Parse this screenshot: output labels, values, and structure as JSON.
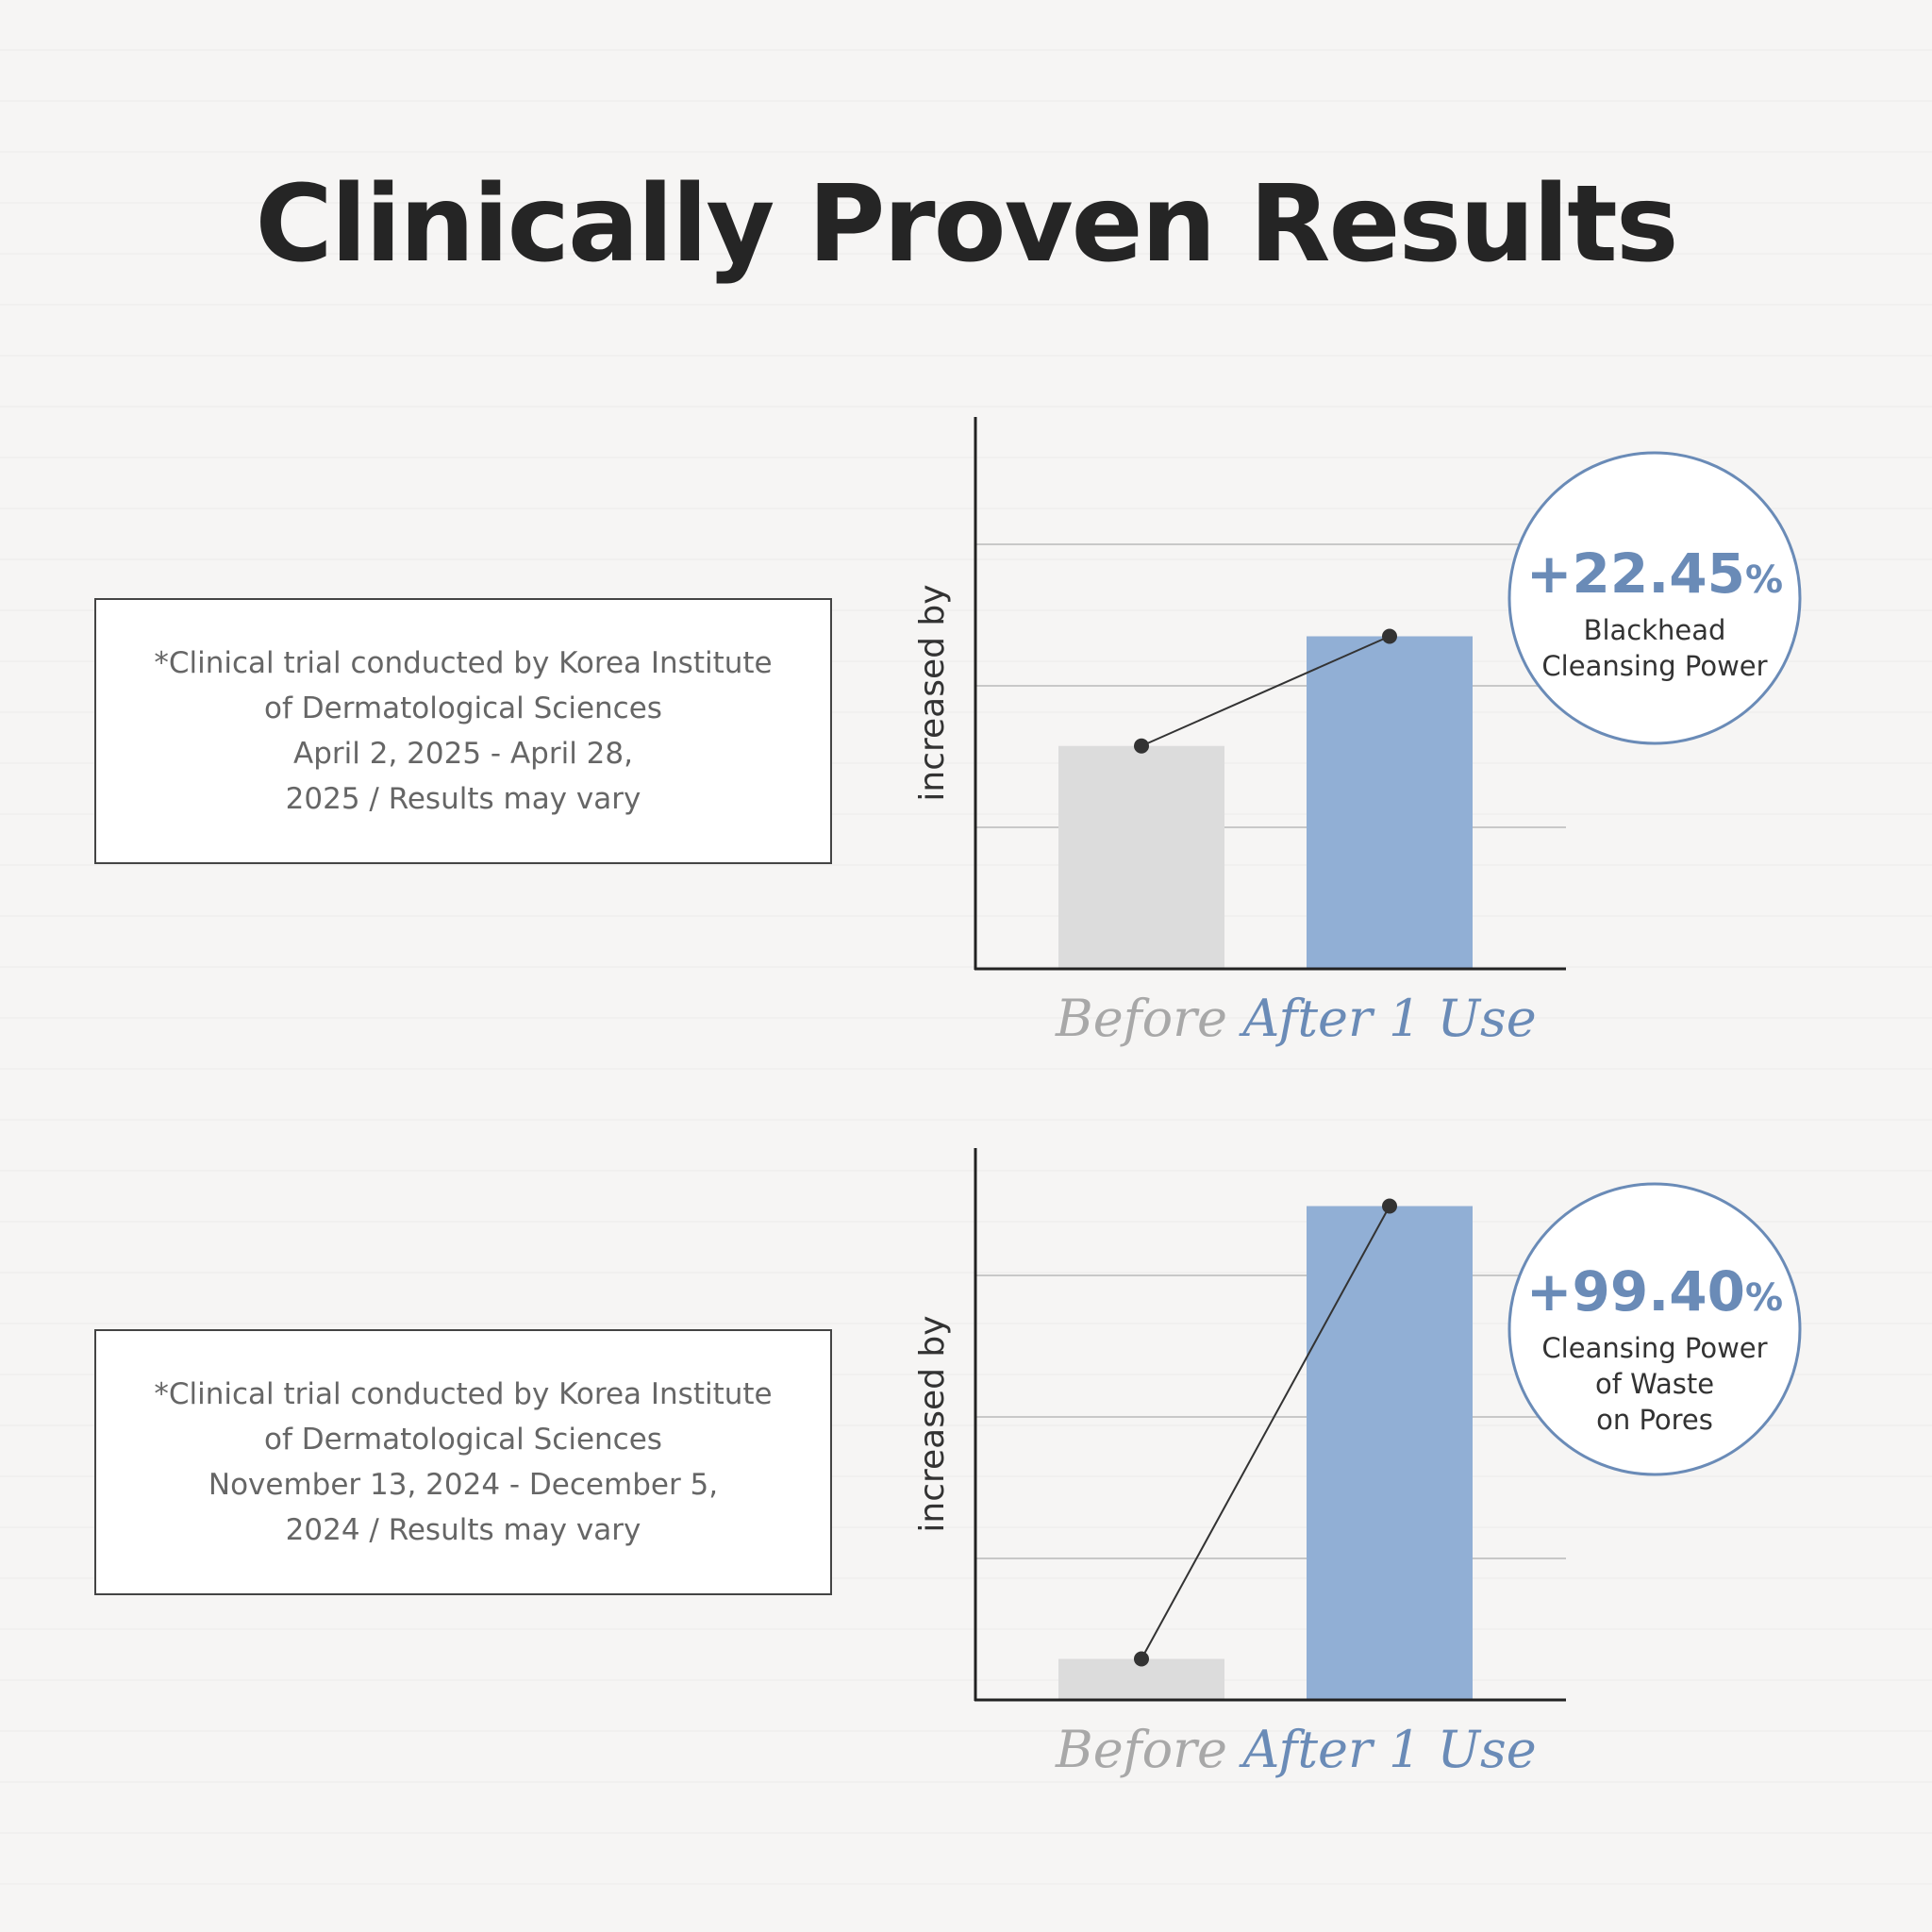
{
  "page": {
    "title": "Clinically Proven Results"
  },
  "colors": {
    "before_bar": "#dcdcdc",
    "after_bar": "#91afd5",
    "accent": "#6a8bb7",
    "before_label": "#a8a8a8",
    "gridline": "#c8c8c8",
    "axis": "#222222",
    "connector": "#333333"
  },
  "charts": [
    {
      "note_lines": [
        "*Clinical trial conducted by Korea Institute",
        "of Dermatological Sciences",
        "April 2, 2025 - April 28,",
        "2025 / Results may vary"
      ],
      "badge": {
        "value": "+22.45",
        "unit": "%",
        "caption": [
          "Blackhead",
          "Cleansing Power"
        ]
      }
    },
    {
      "note_lines": [
        "*Clinical trial conducted by Korea Institute",
        "of Dermatological Sciences",
        "November 13, 2024 - December 5,",
        "2024 / Results may vary"
      ],
      "badge": {
        "value": "+99.40",
        "unit": "%",
        "caption": [
          "Cleansing Power",
          "of Waste",
          "on Pores"
        ]
      }
    }
  ],
  "chart_data": [
    {
      "type": "bar",
      "title": "",
      "xlabel": "",
      "ylabel": "increased by",
      "categories": [
        "Before",
        "After 1 Use"
      ],
      "values": [
        1.575,
        2.35
      ],
      "ylim": [
        0,
        3.9
      ],
      "yticks_gridlines": [
        1,
        2,
        3
      ],
      "grid": true,
      "tick_labels_y": false,
      "connector_line": true
    },
    {
      "type": "bar",
      "title": "",
      "xlabel": "",
      "ylabel": "increased by",
      "categories": [
        "Before",
        "After 1 Use"
      ],
      "values": [
        0.29,
        3.49
      ],
      "ylim": [
        0,
        3.9
      ],
      "yticks_gridlines": [
        1,
        2,
        3
      ],
      "grid": true,
      "tick_labels_y": false,
      "connector_line": true
    }
  ]
}
